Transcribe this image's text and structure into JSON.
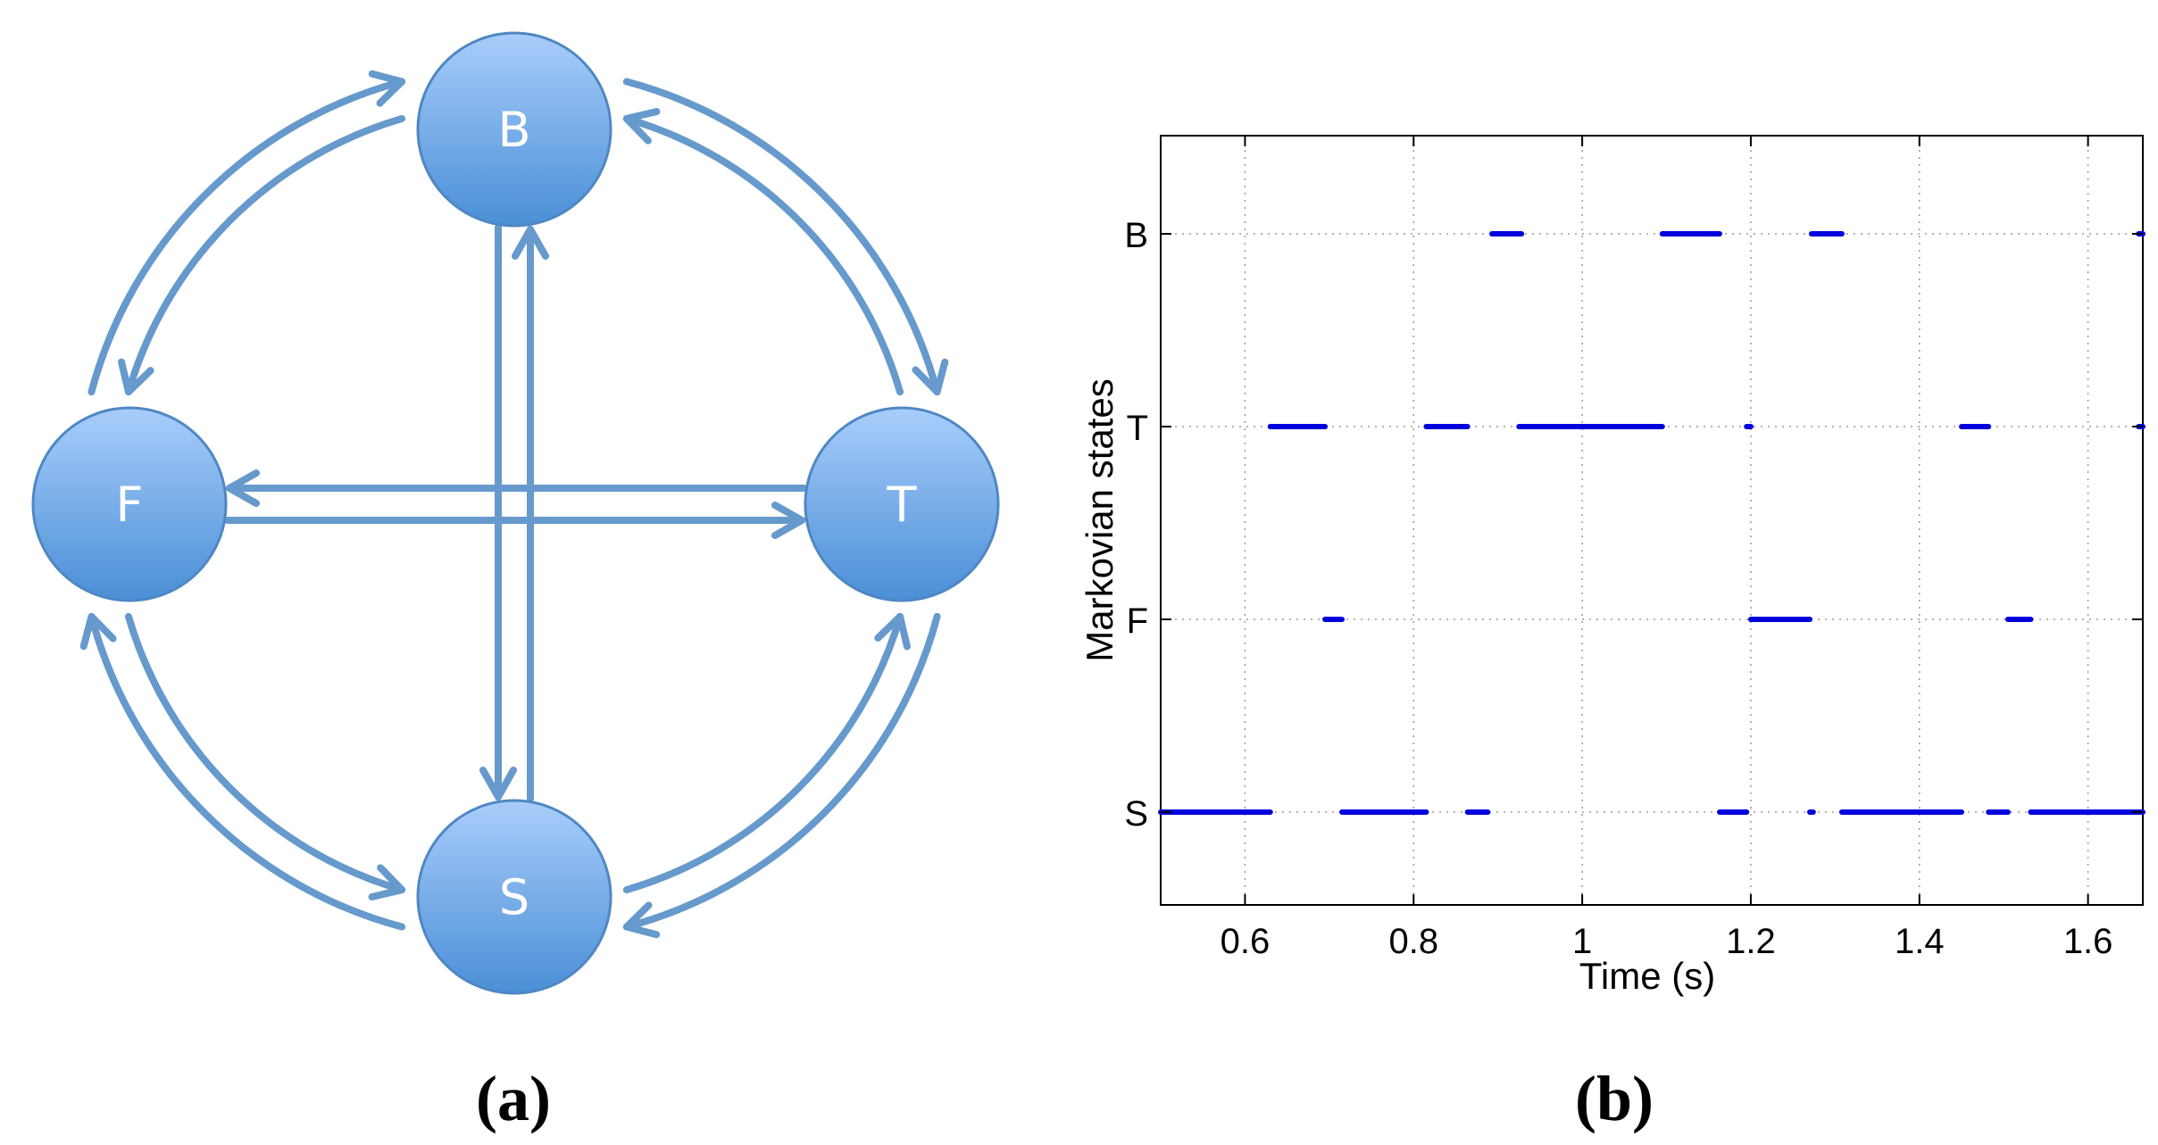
{
  "panel_a": {
    "label": "(a)",
    "nodes": [
      {
        "id": "B",
        "label": "B"
      },
      {
        "id": "F",
        "label": "F"
      },
      {
        "id": "T",
        "label": "T"
      },
      {
        "id": "S",
        "label": "S"
      }
    ],
    "edges": [
      {
        "from": "F",
        "to": "B"
      },
      {
        "from": "B",
        "to": "F"
      },
      {
        "from": "B",
        "to": "T"
      },
      {
        "from": "T",
        "to": "B"
      },
      {
        "from": "F",
        "to": "T"
      },
      {
        "from": "T",
        "to": "F"
      },
      {
        "from": "B",
        "to": "S"
      },
      {
        "from": "S",
        "to": "B"
      },
      {
        "from": "F",
        "to": "S"
      },
      {
        "from": "S",
        "to": "F"
      },
      {
        "from": "S",
        "to": "T"
      },
      {
        "from": "T",
        "to": "S"
      }
    ],
    "colors": {
      "arrow": "#6699cc",
      "node_top": "#a9cdfb",
      "node_bottom": "#4a8fd6",
      "node_edge": "#4f87c4"
    }
  },
  "panel_b": {
    "label": "(b)",
    "chart_data": {
      "type": "timeline",
      "xlabel": "Time (s)",
      "ylabel": "Markovian states",
      "xlim": [
        0.5,
        1.665
      ],
      "xticks": [
        0.6,
        0.8,
        1,
        1.2,
        1.4,
        1.6
      ],
      "xtick_labels": [
        "0.6",
        "0.8",
        "1",
        "1.2",
        "1.4",
        "1.6"
      ],
      "categories": [
        "B",
        "T",
        "F",
        "S"
      ],
      "grid": true,
      "series_color": "#0000dd",
      "segments": {
        "B": [
          [
            0.893,
            0.928
          ],
          [
            1.095,
            1.163
          ],
          [
            1.272,
            1.308
          ],
          [
            1.66,
            1.665
          ]
        ],
        "T": [
          [
            0.63,
            0.695
          ],
          [
            0.815,
            0.864
          ],
          [
            0.925,
            1.095
          ],
          [
            1.195,
            1.2
          ],
          [
            1.45,
            1.482
          ],
          [
            1.66,
            1.665
          ]
        ],
        "F": [
          [
            0.695,
            0.715
          ],
          [
            1.2,
            1.27
          ],
          [
            1.505,
            1.532
          ]
        ],
        "S": [
          [
            0.5,
            0.63
          ],
          [
            0.715,
            0.815
          ],
          [
            0.864,
            0.888
          ],
          [
            1.163,
            1.195
          ],
          [
            1.27,
            1.274
          ],
          [
            1.308,
            1.45
          ],
          [
            1.482,
            1.505
          ],
          [
            1.532,
            1.665
          ]
        ]
      }
    }
  }
}
